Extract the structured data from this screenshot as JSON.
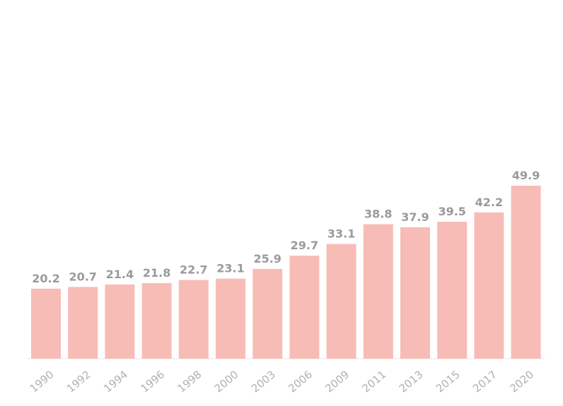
{
  "chart_data": {
    "type": "bar",
    "categories": [
      "1990",
      "1992",
      "1994",
      "1996",
      "1998",
      "2000",
      "2003",
      "2006",
      "2009",
      "2011",
      "2013",
      "2015",
      "2017",
      "2020"
    ],
    "values": [
      20.2,
      20.7,
      21.4,
      21.8,
      22.7,
      23.1,
      25.9,
      29.7,
      33.1,
      38.8,
      37.9,
      39.5,
      42.2,
      49.9
    ],
    "data_labels": [
      "20.2",
      "20.7",
      "21.4",
      "21.8",
      "22.7",
      "23.1",
      "25.9",
      "29.7",
      "33.1",
      "38.8",
      "37.9",
      "39.5",
      "42.2",
      "49.9"
    ],
    "title": "",
    "xlabel": "",
    "ylabel": "",
    "ylim": [
      0,
      100
    ],
    "grid": false,
    "legend": "none",
    "colors": {
      "bar": "#f8bcb6",
      "data_label": "#9a9a9a",
      "tick_label": "#b0b0b0",
      "axis": "#e6e6e6"
    }
  }
}
